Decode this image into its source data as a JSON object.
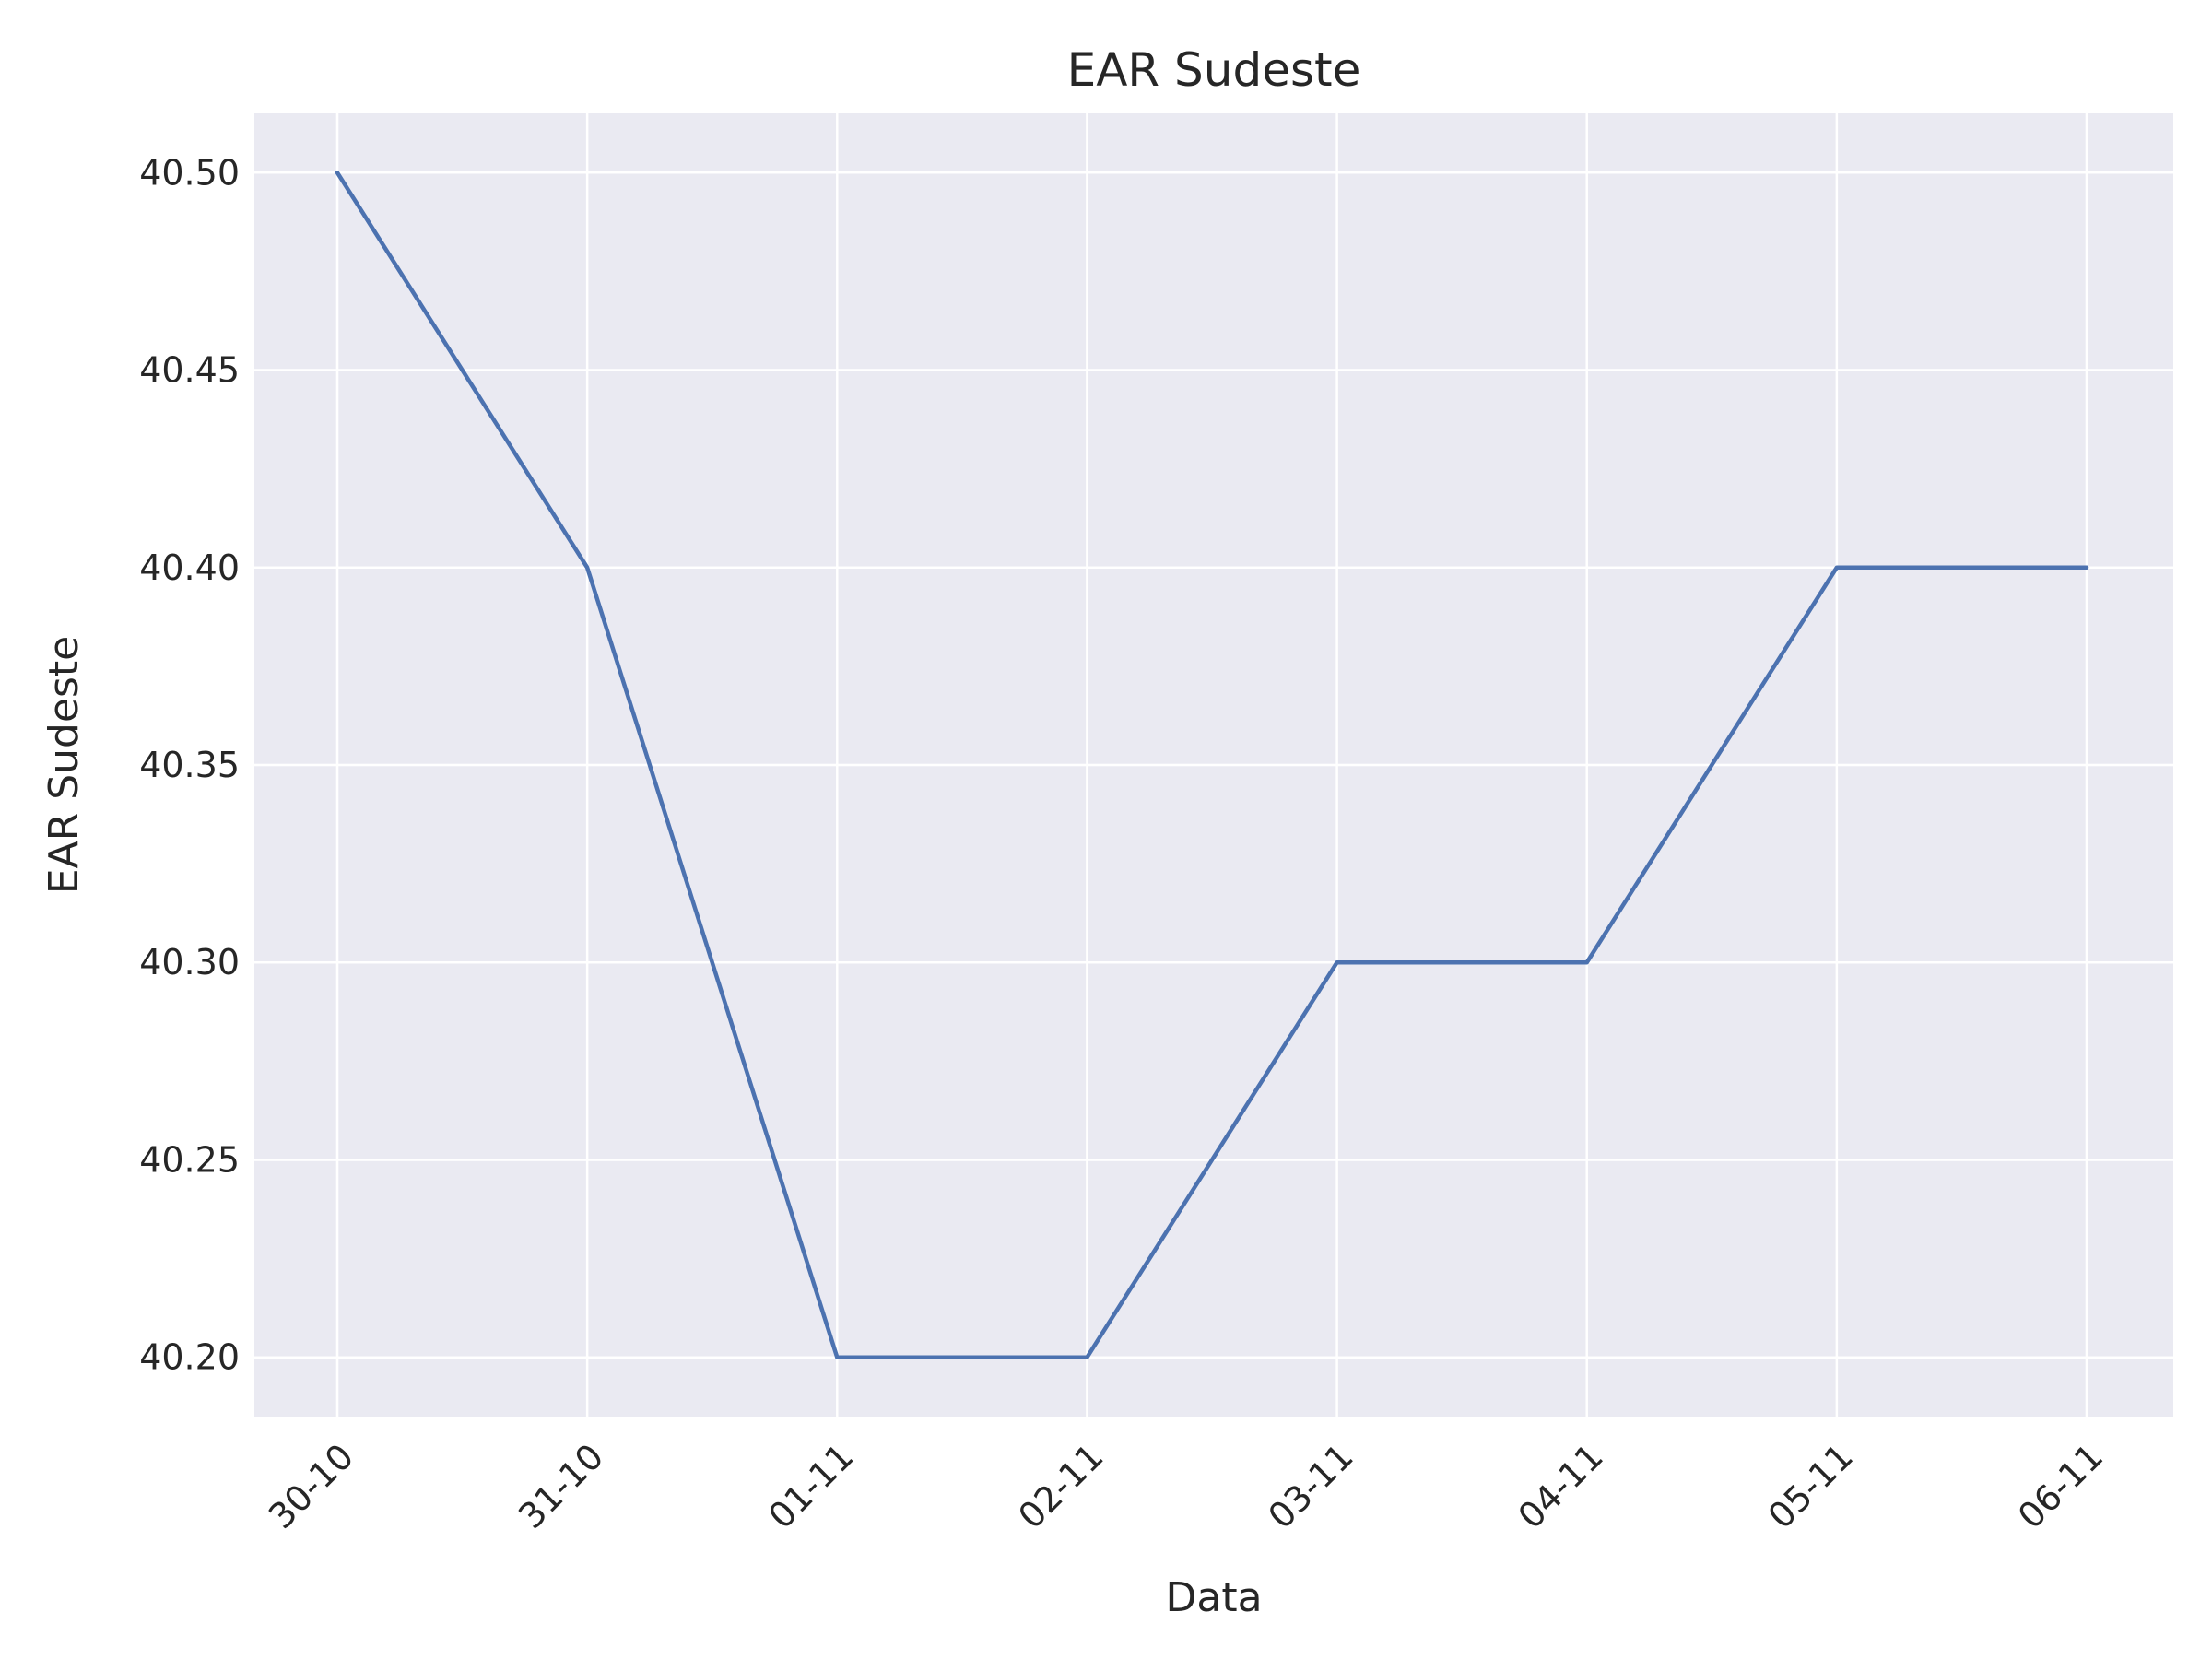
{
  "chart_data": {
    "type": "line",
    "title": "EAR Sudeste",
    "xlabel": "Data",
    "ylabel": "EAR Sudeste",
    "categories": [
      "30-10",
      "31-10",
      "01-11",
      "02-11",
      "03-11",
      "04-11",
      "05-11",
      "06-11"
    ],
    "series": [
      {
        "values": [
          40.5,
          40.4,
          40.2,
          40.2,
          40.3,
          40.3,
          40.4,
          40.4
        ]
      }
    ],
    "yticks": [
      "40.20",
      "40.25",
      "40.30",
      "40.35",
      "40.40",
      "40.45",
      "40.50"
    ],
    "ylim": [
      40.185,
      40.515
    ],
    "grid": true,
    "x_tick_rotation": "45 degrees",
    "colors": {
      "background": "#EAEAF2",
      "grid": "#FFFFFF",
      "line": "#4C72B0",
      "text": "#262626"
    }
  }
}
